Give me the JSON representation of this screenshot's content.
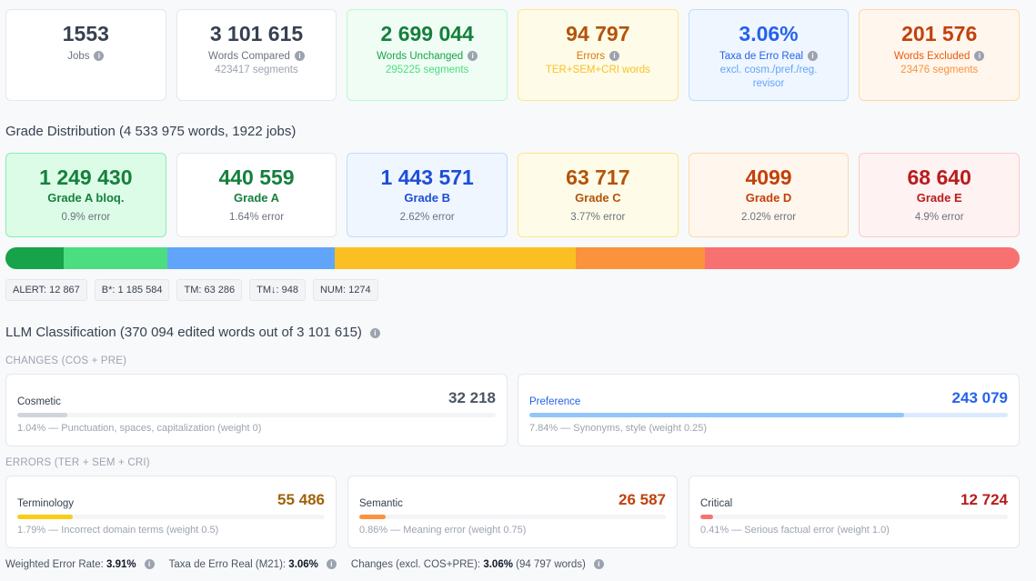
{
  "stats": [
    {
      "value": "1553",
      "label": "Jobs",
      "sub": ""
    },
    {
      "value": "3 101 615",
      "label": "Words Compared",
      "sub": "423417 segments"
    },
    {
      "value": "2 699 044",
      "label": "Words Unchanged",
      "sub": "295225 segments"
    },
    {
      "value": "94 797",
      "label": "Errors",
      "sub": "TER+SEM+CRI words"
    },
    {
      "value": "3.06%",
      "label": "Taxa de Erro Real",
      "sub": "excl. cosm./pref./reg. revisor"
    },
    {
      "value": "201 576",
      "label": "Words Excluded",
      "sub": "23476 segments"
    }
  ],
  "grade_title": "Grade Distribution (4 533 975 words, 1922 jobs)",
  "grades": [
    {
      "value": "1 249 430",
      "label": "Grade A bloq.",
      "sub": "0.9% error"
    },
    {
      "value": "440 559",
      "label": "Grade A",
      "sub": "1.64% error"
    },
    {
      "value": "1 443 571",
      "label": "Grade B",
      "sub": "2.62% error"
    },
    {
      "value": "63 717",
      "label": "Grade C",
      "sub": "3.77% error"
    },
    {
      "value": "4099",
      "label": "Grade D",
      "sub": "2.02% error"
    },
    {
      "value": "68 640",
      "label": "Grade E",
      "sub": "4.9% error"
    }
  ],
  "bar_segments": [
    {
      "fraction": 0.0574,
      "color": "#16a34a"
    },
    {
      "fraction": 0.1023,
      "color": "#4ade80"
    },
    {
      "fraction": 0.165,
      "color": "#60a5fa"
    },
    {
      "fraction": 0.2376,
      "color": "#fbbf24"
    },
    {
      "fraction": 0.1274,
      "color": "#fb923c"
    },
    {
      "fraction": 0.3103,
      "color": "#f87171"
    }
  ],
  "chips": [
    "ALERT: 12 867",
    "B*: 1 185 584",
    "TM: 63 286",
    "TM↓: 948",
    "NUM: 1274"
  ],
  "llm_title": "LLM Classification (370 094 edited words out of 3 101 615)",
  "changes_title": "CHANGES (COS + PRE)",
  "errors_title": "ERRORS (TER + SEM + CRI)",
  "llm_changes": [
    {
      "name": "Cosmetic",
      "value": "32 218",
      "sub": "1.04% — Punctuation, spaces, capitalization (weight 0)",
      "fill": 0.104
    },
    {
      "name": "Preference",
      "value": "243 079",
      "sub": "7.84% — Synonyms, style (weight 0.25)",
      "fill": 0.784
    }
  ],
  "llm_errors": [
    {
      "name": "Terminology",
      "value": "55 486",
      "sub": "1.79% — Incorrect domain terms (weight 0.5)",
      "fill": 0.179
    },
    {
      "name": "Semantic",
      "value": "26 587",
      "sub": "0.86% — Meaning error (weight 0.75)",
      "fill": 0.086
    },
    {
      "name": "Critical",
      "value": "12 724",
      "sub": "0.41% — Serious factual error (weight 1.0)",
      "fill": 0.041
    }
  ],
  "footer": {
    "wer_label": "Weighted Error Rate:",
    "wer_value": "3.91%",
    "ter_label": "Taxa de Erro Real (M21):",
    "ter_value": "3.06%",
    "chg_label": "Changes (excl. COS+PRE):",
    "chg_value": "3.06%",
    "chg_extra": "(94 797 words)"
  }
}
